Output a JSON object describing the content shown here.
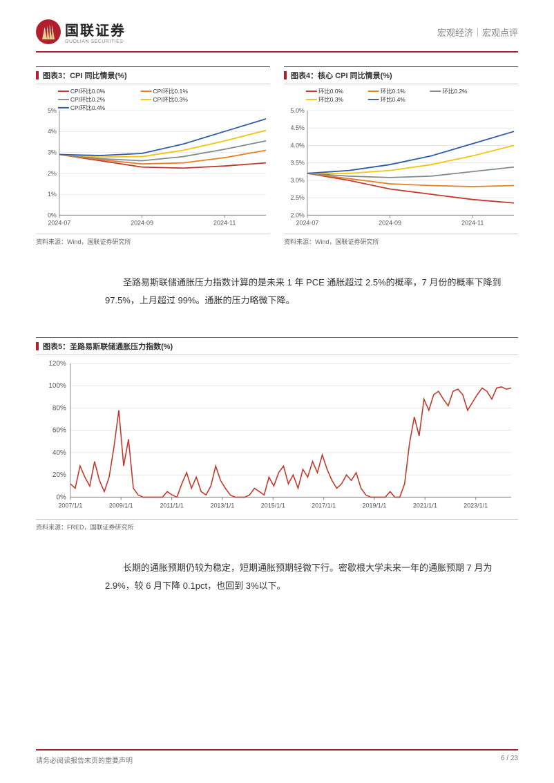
{
  "header": {
    "logo_cn": "国联证券",
    "logo_en": "GUOLIAN SECURITIES",
    "right_text": "宏观经济｜宏观点评"
  },
  "chart3": {
    "title": "图表3：CPI 同比情景(%)",
    "type": "line",
    "x_labels": [
      "2024-07",
      "2024-09",
      "2024-11"
    ],
    "x_positions": [
      0,
      2,
      4
    ],
    "y_min": 0,
    "y_max": 5,
    "y_step": 1,
    "y_ticks": [
      "0%",
      "1%",
      "2%",
      "3%",
      "4%",
      "5%"
    ],
    "legend": [
      "CPI环比0.0%",
      "CPI环比0.1%",
      "CPI环比0.2%",
      "CPI环比0.3%",
      "CPI环比0.4%"
    ],
    "colors": [
      "#c0392b",
      "#e67e22",
      "#7f8c8d",
      "#f1c40f",
      "#2e5aac"
    ],
    "series": [
      [
        2.9,
        2.6,
        2.3,
        2.25,
        2.35,
        2.5
      ],
      [
        2.9,
        2.65,
        2.45,
        2.5,
        2.75,
        3.1
      ],
      [
        2.9,
        2.7,
        2.6,
        2.8,
        3.15,
        3.55
      ],
      [
        2.9,
        2.78,
        2.8,
        3.1,
        3.55,
        4.05
      ],
      [
        2.9,
        2.85,
        2.95,
        3.4,
        4.0,
        4.6
      ]
    ],
    "source": "资料来源：Wind，国联证券研究所",
    "grid_color": "#d8d8d8",
    "axis_color": "#888",
    "bg": "#ffffff"
  },
  "chart4": {
    "title": "图表4：核心 CPI 同比情景(%)",
    "type": "line",
    "x_labels": [
      "2024-07",
      "2024-09",
      "2024-11"
    ],
    "x_positions": [
      0,
      2,
      4
    ],
    "y_min": 2.0,
    "y_max": 5.0,
    "y_step": 0.5,
    "y_ticks": [
      "2.0%",
      "2.5%",
      "3.0%",
      "3.5%",
      "4.0%",
      "4.5%",
      "5.0%"
    ],
    "legend": [
      "环比0.0%",
      "环比0.1%",
      "环比0.2%",
      "环比0.3%",
      "环比0.4%"
    ],
    "colors": [
      "#c0392b",
      "#e67e22",
      "#7f8c8d",
      "#f1c40f",
      "#2e5aac"
    ],
    "series": [
      [
        3.2,
        3.0,
        2.75,
        2.6,
        2.45,
        2.35
      ],
      [
        3.2,
        3.05,
        2.9,
        2.85,
        2.82,
        2.85
      ],
      [
        3.2,
        3.12,
        3.08,
        3.12,
        3.25,
        3.38
      ],
      [
        3.2,
        3.2,
        3.28,
        3.45,
        3.7,
        4.0
      ],
      [
        3.2,
        3.28,
        3.45,
        3.7,
        4.05,
        4.4
      ]
    ],
    "source": "资料来源：Wind，国联证券研究所",
    "grid_color": "#d8d8d8",
    "axis_color": "#888",
    "bg": "#ffffff"
  },
  "paragraph1": "圣路易斯联储通胀压力指数计算的是未来 1 年 PCE 通胀超过 2.5%的概率，7 月份的概率下降到 97.5%，上月超过 99%。通胀的压力略微下降。",
  "chart5": {
    "title": "图表5：圣路易斯联储通胀压力指数(%)",
    "type": "line",
    "y_min": 0,
    "y_max": 120,
    "y_step": 20,
    "y_ticks": [
      "0%",
      "20%",
      "40%",
      "60%",
      "80%",
      "100%",
      "120%"
    ],
    "x_labels": [
      "2007/1/1",
      "2009/1/1",
      "2011/1/1",
      "2013/1/1",
      "2015/1/1",
      "2017/1/1",
      "2019/1/1",
      "2021/1/1",
      "2023/1/1"
    ],
    "color": "#c0392b",
    "grid_color": "#d8d8d8",
    "axis_color": "#888",
    "bg": "#ffffff",
    "data": [
      12,
      8,
      28,
      18,
      10,
      32,
      15,
      5,
      18,
      45,
      78,
      28,
      52,
      8,
      2,
      0,
      0,
      0,
      0,
      0,
      5,
      2,
      0,
      12,
      22,
      8,
      18,
      5,
      2,
      10,
      28,
      15,
      8,
      2,
      0,
      0,
      0,
      2,
      8,
      5,
      2,
      18,
      10,
      22,
      28,
      12,
      20,
      8,
      25,
      18,
      32,
      22,
      38,
      25,
      15,
      8,
      12,
      20,
      15,
      22,
      8,
      2,
      0,
      0,
      0,
      0,
      5,
      0,
      0,
      12,
      48,
      72,
      55,
      88,
      78,
      92,
      95,
      88,
      82,
      95,
      97,
      92,
      78,
      85,
      92,
      98,
      95,
      88,
      98,
      99,
      97,
      98
    ],
    "source": "资料来源：FRED，国联证券研究所"
  },
  "paragraph2": "长期的通胀预期仍较为稳定，短期通胀预期轻微下行。密歇根大学未来一年的通胀预期 7 月为 2.9%，较 6 月下降 0.1pct，也回到 3%以下。",
  "footer": {
    "left": "请务必阅读报告末页的重要声明",
    "right": "6 / 23"
  }
}
